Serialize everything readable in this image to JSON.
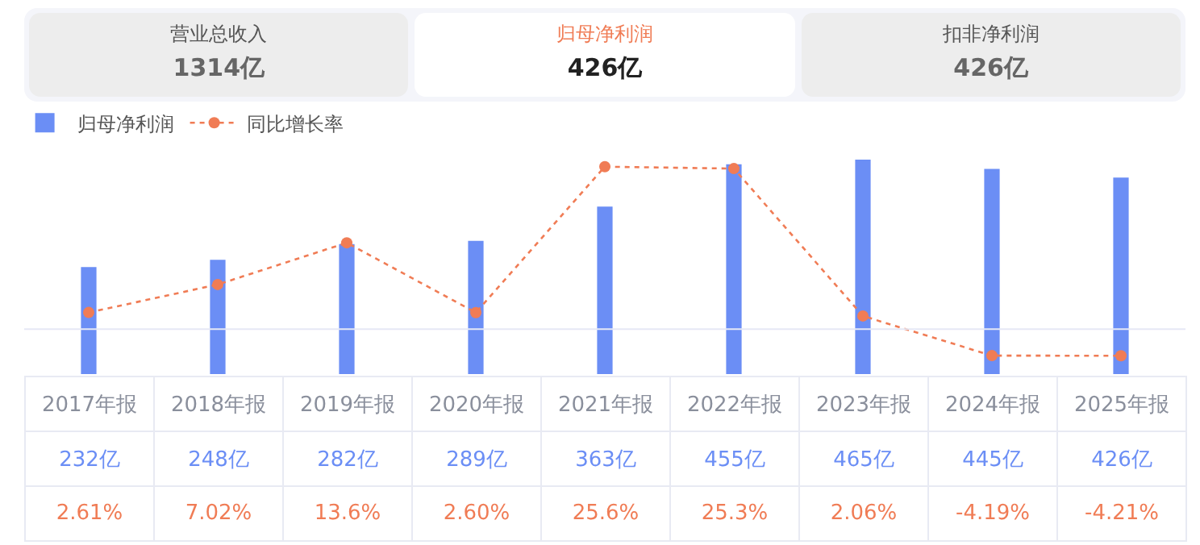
{
  "chart_data": {
    "type": "bar",
    "annotations": [
      "营业总收入",
      "1314亿",
      "归母净利润",
      "426亿",
      "扣非净利润",
      "426亿"
    ],
    "categories": [
      "2017年报",
      "2018年报",
      "2019年报",
      "2020年报",
      "2021年报",
      "2022年报",
      "2023年报",
      "2024年报",
      "2025年报"
    ],
    "series": [
      {
        "name": "归母净利润",
        "color": "#6b8ef5",
        "values": [
          232,
          248,
          282,
          289,
          363,
          455,
          465,
          445,
          426
        ],
        "value_labels": [
          "232亿",
          "248亿",
          "282亿",
          "289亿",
          "363亿",
          "455亿",
          "465亿",
          "445亿",
          "426亿"
        ]
      },
      {
        "name": "同比增长率",
        "type": "line",
        "axis": "y2",
        "color": "#f07c55",
        "marker": "circle",
        "line_style": "dotted",
        "values": [
          2.61,
          7.02,
          13.6,
          2.6,
          25.6,
          25.3,
          2.06,
          -4.19,
          -4.21
        ],
        "value_labels": [
          "2.61%",
          "7.02%",
          "13.6%",
          "2.60%",
          "25.6%",
          "25.3%",
          "2.06%",
          "-4.19%",
          "-4.21%"
        ]
      }
    ],
    "ref_lines": [
      {
        "axis": "y2",
        "value": 0,
        "color": "#e6e8f5"
      }
    ],
    "tick_labels": false,
    "grid": false,
    "legend": "top left"
  }
}
